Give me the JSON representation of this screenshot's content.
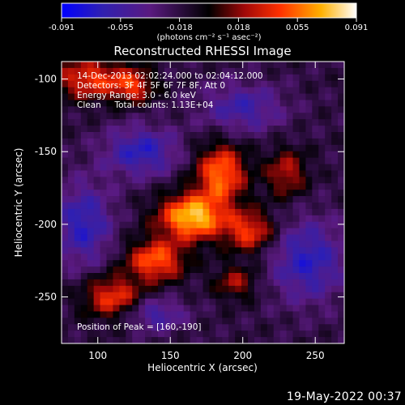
{
  "window": {
    "footer_timestamp": "19-May-2022 00:37"
  },
  "chart_data": {
    "type": "heatmap",
    "title": "Reconstructed RHESSI Image",
    "xlabel": "Heliocentric X (arcsec)",
    "ylabel": "Heliocentric Y (arcsec)",
    "xlim": [
      75,
      270
    ],
    "ylim": [
      -282,
      -88
    ],
    "x_ticks": [
      100,
      150,
      200,
      250
    ],
    "y_ticks": [
      -100,
      -150,
      -200,
      -250
    ],
    "colorbar": {
      "range": [
        -0.091,
        0.091
      ],
      "ticks": [
        "-0.091",
        "-0.055",
        "-0.018",
        "0.018",
        "0.055",
        "0.091"
      ],
      "unit_label": "(photons cm⁻² s⁻¹ asec⁻²)",
      "colors": [
        "#0000ff",
        "#4020a0",
        "#5a1a80",
        "#000000",
        "#b01010",
        "#ff4000",
        "#ffb000",
        "#ffffff"
      ]
    },
    "annotations": [
      "14-Dec-2013 02:02:24.000 to 02:04:12.000",
      "Detectors: 3F 4F 5F 6F 7F 8F, Att 0",
      "Energy Range: 3.0 - 6.0 keV",
      "Clean     Total counts: 1.13E+04"
    ],
    "peak_label": "Position of Peak = [160,-190]",
    "peak": [
      160,
      -190
    ],
    "sources": [
      {
        "x": 165,
        "y": -195,
        "amp": 0.095,
        "sx": 16,
        "sy": 11
      },
      {
        "x": 140,
        "y": -225,
        "amp": 0.07,
        "sx": 14,
        "sy": 10
      },
      {
        "x": 185,
        "y": -165,
        "amp": 0.075,
        "sx": 12,
        "sy": 14
      },
      {
        "x": 205,
        "y": -205,
        "amp": 0.06,
        "sx": 12,
        "sy": 10
      },
      {
        "x": 110,
        "y": -250,
        "amp": 0.06,
        "sx": 14,
        "sy": 10
      },
      {
        "x": 95,
        "y": -100,
        "amp": 0.06,
        "sx": 18,
        "sy": 10
      },
      {
        "x": 125,
        "y": -105,
        "amp": 0.05,
        "sx": 10,
        "sy": 8
      },
      {
        "x": 230,
        "y": -165,
        "amp": 0.045,
        "sx": 10,
        "sy": 12
      },
      {
        "x": 195,
        "y": -240,
        "amp": 0.04,
        "sx": 10,
        "sy": 8
      },
      {
        "x": 90,
        "y": -200,
        "amp": -0.05,
        "sx": 14,
        "sy": 20
      },
      {
        "x": 130,
        "y": -150,
        "amp": -0.05,
        "sx": 18,
        "sy": 12
      },
      {
        "x": 245,
        "y": -225,
        "amp": -0.05,
        "sx": 18,
        "sy": 20
      },
      {
        "x": 200,
        "y": -120,
        "amp": -0.04,
        "sx": 20,
        "sy": 12
      },
      {
        "x": 140,
        "y": -262,
        "amp": -0.04,
        "sx": 14,
        "sy": 8
      }
    ]
  }
}
